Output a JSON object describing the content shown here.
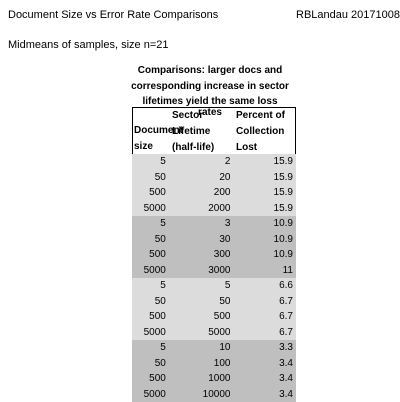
{
  "header": {
    "title": "Document Size vs Error Rate Comparisons",
    "author": "RBLandau 20171008",
    "subtitle": "Midmeans of samples, size n=21"
  },
  "caption": {
    "line1": "Comparisons: larger docs and",
    "line2": "corresponding increase in sector",
    "line3": "lifetimes yield the same loss rates"
  },
  "table_head": {
    "col1": [
      "",
      "",
      "Document",
      "size"
    ],
    "col2": [
      "Sector",
      "Lifetime",
      "(half-life)"
    ],
    "col3": [
      "Percent of",
      "Collection",
      "Lost"
    ]
  },
  "rows": [
    {
      "size": "5",
      "lifetime": "2",
      "lost": "15.9",
      "group": "light"
    },
    {
      "size": "50",
      "lifetime": "20",
      "lost": "15.9",
      "group": "light"
    },
    {
      "size": "500",
      "lifetime": "200",
      "lost": "15.9",
      "group": "light"
    },
    {
      "size": "5000",
      "lifetime": "2000",
      "lost": "15.9",
      "group": "light"
    },
    {
      "size": "5",
      "lifetime": "3",
      "lost": "10.9",
      "group": "dark"
    },
    {
      "size": "50",
      "lifetime": "30",
      "lost": "10.9",
      "group": "dark"
    },
    {
      "size": "500",
      "lifetime": "300",
      "lost": "10.9",
      "group": "dark"
    },
    {
      "size": "5000",
      "lifetime": "3000",
      "lost": "11",
      "group": "dark"
    },
    {
      "size": "5",
      "lifetime": "5",
      "lost": "6.6",
      "group": "light"
    },
    {
      "size": "50",
      "lifetime": "50",
      "lost": "6.7",
      "group": "light"
    },
    {
      "size": "500",
      "lifetime": "500",
      "lost": "6.7",
      "group": "light"
    },
    {
      "size": "5000",
      "lifetime": "5000",
      "lost": "6.7",
      "group": "light"
    },
    {
      "size": "5",
      "lifetime": "10",
      "lost": "3.3",
      "group": "dark"
    },
    {
      "size": "50",
      "lifetime": "100",
      "lost": "3.4",
      "group": "dark"
    },
    {
      "size": "500",
      "lifetime": "1000",
      "lost": "3.4",
      "group": "dark"
    },
    {
      "size": "5000",
      "lifetime": "10000",
      "lost": "3.4",
      "group": "dark"
    }
  ],
  "colors": {
    "light_band": "#dcdcdc",
    "dark_band": "#bfbfbf"
  }
}
